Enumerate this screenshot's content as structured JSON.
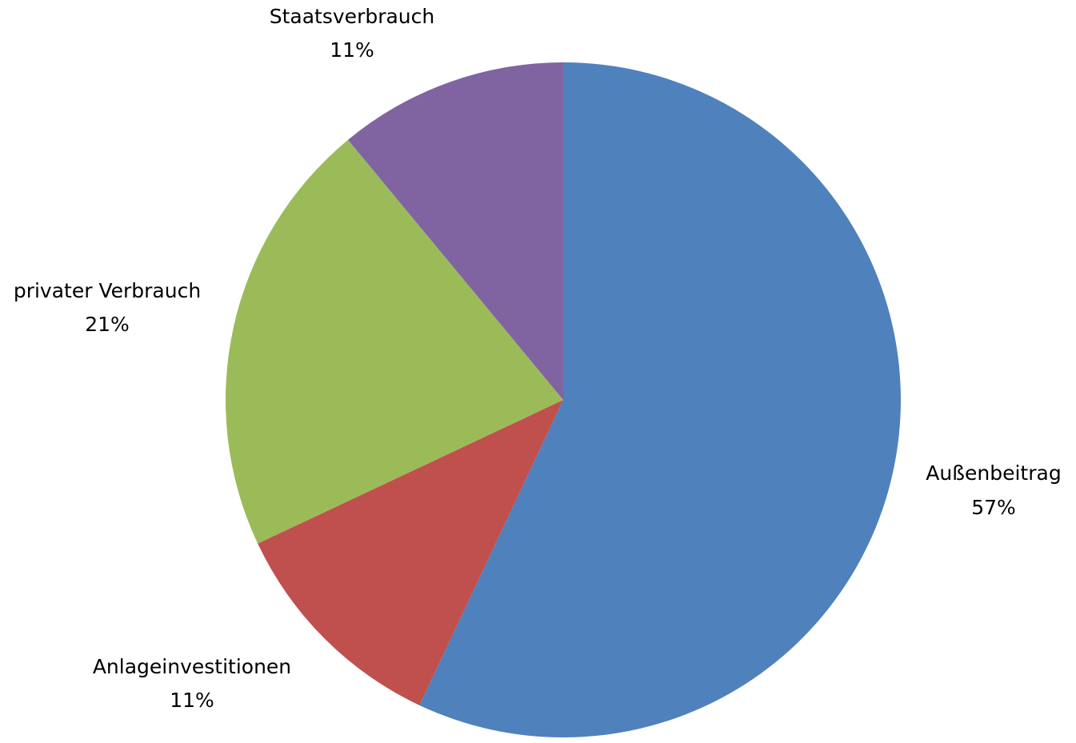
{
  "chart_data": {
    "type": "pie",
    "slices": [
      {
        "label": "Außenbeitrag",
        "value": 57,
        "value_label": "57%",
        "color": "#4f81bd"
      },
      {
        "label": "Anlageinvestitionen",
        "value": 11,
        "value_label": "11%",
        "color": "#c0504d"
      },
      {
        "label": "privater Verbrauch",
        "value": 21,
        "value_label": "21%",
        "color": "#9bbb59"
      },
      {
        "label": "Staatsverbrauch",
        "value": 11,
        "value_label": "11%",
        "color": "#8064a2"
      }
    ],
    "start": "12 o'clock",
    "direction": "clockwise",
    "legend": "none",
    "data_labels": "outside"
  }
}
